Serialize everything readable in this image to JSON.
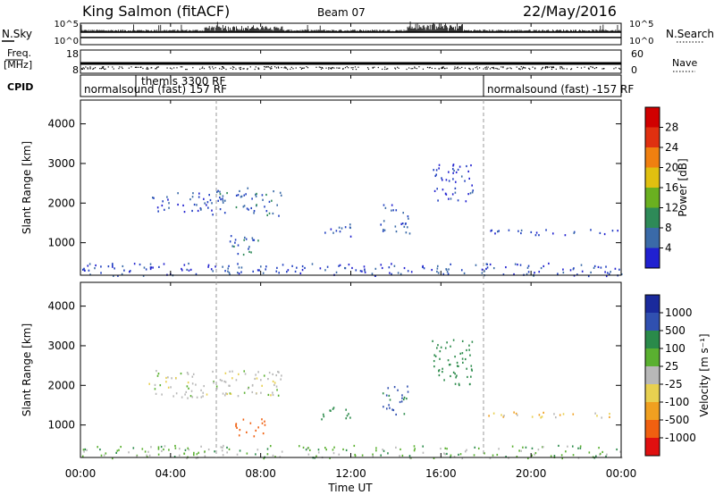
{
  "header": {
    "station": "King Salmon (fitACF)",
    "beam": "Beam 07",
    "date": "22/May/2016"
  },
  "strip": {
    "nsky_label": "N.Sky",
    "nsky_ticks": [
      "10^5",
      "10^0"
    ],
    "nsearch_label": "N.Search",
    "nsearch_ticks": [
      "10^5",
      "10^0"
    ],
    "freq_label_1": "Freq.",
    "freq_label_2": "[MHz]",
    "freq_ticks": [
      "18",
      "8"
    ],
    "nave_label": "Nave",
    "nave_ticks": [
      "60",
      "0"
    ],
    "cpid_label": "CPID",
    "cpid_segments": [
      "normalsound (fast) 157 RF",
      "themis 3300 RF",
      "normalsound (fast) -157 RF"
    ]
  },
  "x_axis": {
    "label": "Time UT",
    "ticks": [
      "00:00",
      "04:00",
      "08:00",
      "12:00",
      "16:00",
      "20:00",
      "00:00"
    ]
  },
  "chart_data": [
    {
      "type": "heatmap",
      "quantity": "power",
      "ylabel": "Slant Range [km]",
      "xlim": [
        0,
        24
      ],
      "ylim": [
        180,
        4600
      ],
      "yticks": [
        "1000",
        "2000",
        "3000",
        "4000"
      ],
      "colorbar_label": "Power [dB]",
      "colorbar_ticks": [
        "4",
        "8",
        "12",
        "16",
        "20",
        "24",
        "28"
      ],
      "colorbar_range": [
        0,
        30
      ],
      "regions": [
        {
          "t0": 5.8,
          "t1": 8.9,
          "r0": 1700,
          "r1": 2400,
          "v": 9
        },
        {
          "t0": 3.0,
          "t1": 5.8,
          "r0": 1800,
          "r1": 2300,
          "v": 5
        },
        {
          "t0": 6.6,
          "t1": 8.2,
          "r0": 700,
          "r1": 1200,
          "v": 10
        },
        {
          "t0": 10.6,
          "t1": 12.0,
          "r0": 1150,
          "r1": 1500,
          "v": 8
        },
        {
          "t0": 13.3,
          "t1": 14.6,
          "r0": 1250,
          "r1": 2000,
          "v": 7
        },
        {
          "t0": 15.6,
          "t1": 17.4,
          "r0": 2000,
          "r1": 3000,
          "v": 4
        },
        {
          "t0": 18.0,
          "t1": 24.0,
          "r0": 1200,
          "r1": 1350,
          "v": 4
        },
        {
          "t0": 0.0,
          "t1": 24.0,
          "r0": 180,
          "r1": 500,
          "v": 6
        }
      ]
    },
    {
      "type": "heatmap",
      "quantity": "velocity",
      "ylabel": "Slant Range [km]",
      "xlim": [
        0,
        24
      ],
      "ylim": [
        180,
        4600
      ],
      "yticks": [
        "1000",
        "2000",
        "3000",
        "4000"
      ],
      "colorbar_label": "Velocity [m s⁻¹]",
      "colorbar_ticks": [
        "1000",
        "500",
        "100",
        "25",
        "-25",
        "-100",
        "-500",
        "-1000"
      ],
      "regions": [
        {
          "t0": 3.0,
          "t1": 8.9,
          "r0": 1700,
          "r1": 2400,
          "v": 0
        },
        {
          "t0": 6.8,
          "t1": 8.2,
          "r0": 700,
          "r1": 1200,
          "v": -400
        },
        {
          "t0": 10.6,
          "t1": 12.0,
          "r0": 1150,
          "r1": 1500,
          "v": 120
        },
        {
          "t0": 13.3,
          "t1": 14.6,
          "r0": 1250,
          "r1": 2000,
          "v": 300
        },
        {
          "t0": 15.6,
          "t1": 17.4,
          "r0": 2000,
          "r1": 3200,
          "v": 250
        },
        {
          "t0": 18.0,
          "t1": 24.0,
          "r0": 1200,
          "r1": 1350,
          "v": -40
        },
        {
          "t0": 0.0,
          "t1": 24.0,
          "r0": 180,
          "r1": 500,
          "v": 40
        }
      ]
    }
  ]
}
